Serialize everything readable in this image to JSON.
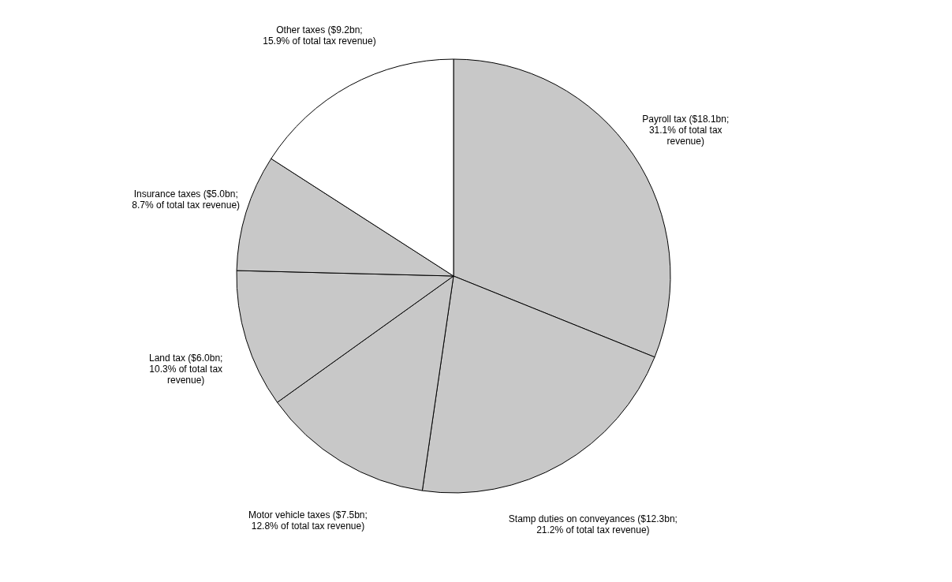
{
  "chart_data": {
    "type": "pie",
    "categories": [
      "Payroll tax ($18.1bn;\n31.1% of total tax\nrevenue)",
      "Stamp duties on conveyances ($12.3bn;\n21.2% of total tax revenue)",
      "Motor vehicle taxes ($7.5bn;\n12.8% of total tax revenue)",
      "Land tax ($6.0bn;\n10.3% of total tax\nrevenue)",
      "Insurance taxes ($5.0bn;\n8.7% of total tax revenue)",
      "Other taxes ($9.2bn;\n15.9% of total tax revenue)"
    ],
    "values": [
      31.1,
      21.2,
      12.8,
      10.3,
      8.7,
      15.9
    ],
    "colors": [
      "#c8c8c8",
      "#c8c8c8",
      "#c8c8c8",
      "#c8c8c8",
      "#c8c8c8",
      "#ffffff"
    ]
  }
}
